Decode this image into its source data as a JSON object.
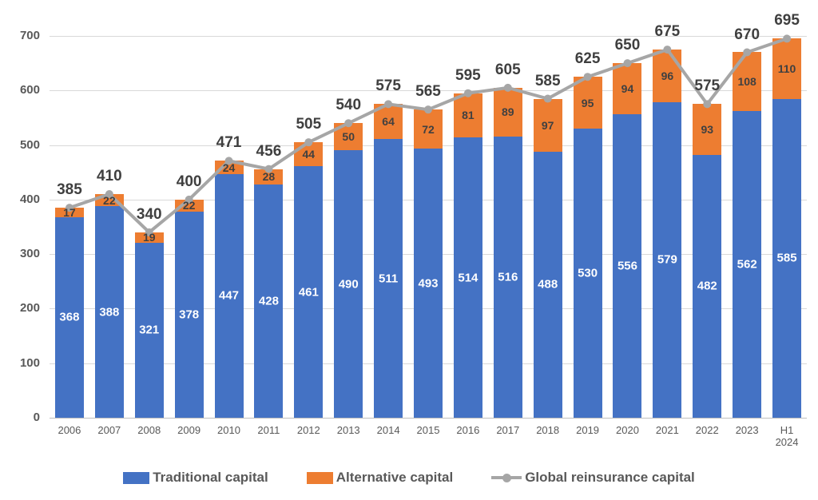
{
  "chart_data": {
    "type": "bar",
    "stacked": true,
    "title": "",
    "xlabel": "",
    "ylabel": "",
    "categories": [
      "2006",
      "2007",
      "2008",
      "2009",
      "2010",
      "2011",
      "2012",
      "2013",
      "2014",
      "2015",
      "2016",
      "2017",
      "2018",
      "2019",
      "2020",
      "2021",
      "2022",
      "2023",
      "H1 2024"
    ],
    "series": [
      {
        "name": "Traditional capital",
        "role": "bar",
        "color": "#4472C4",
        "label_color": "#FFFFFF",
        "values": [
          368,
          388,
          321,
          378,
          447,
          428,
          461,
          490,
          511,
          493,
          514,
          516,
          488,
          530,
          556,
          579,
          482,
          562,
          585
        ]
      },
      {
        "name": "Alternative capital",
        "role": "bar",
        "color": "#ED7D31",
        "label_color": "#404040",
        "values": [
          17,
          22,
          19,
          22,
          24,
          28,
          44,
          50,
          64,
          72,
          81,
          89,
          97,
          95,
          94,
          96,
          93,
          108,
          110
        ]
      },
      {
        "name": "Global reinsurance capital",
        "role": "line",
        "color": "#A6A6A6",
        "label_color": "#3F3F3F",
        "values": [
          385,
          410,
          340,
          400,
          471,
          456,
          505,
          540,
          575,
          565,
          595,
          605,
          585,
          625,
          650,
          675,
          575,
          670,
          695
        ]
      }
    ],
    "y_ticks": [
      0,
      100,
      200,
      300,
      400,
      500,
      600,
      700
    ],
    "ylim": [
      0,
      700
    ],
    "grid": true,
    "gridline_color": "#D9D9D9",
    "axis_text_color": "#595959",
    "legend_position": "bottom"
  }
}
